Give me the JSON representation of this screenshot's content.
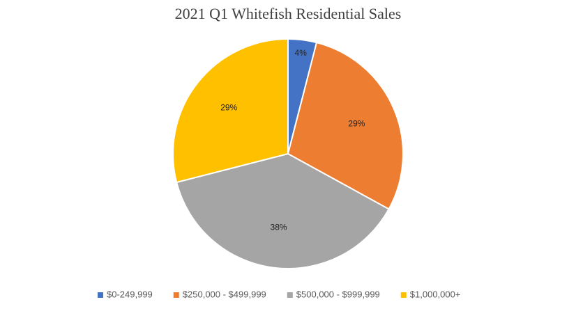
{
  "chart_data": {
    "type": "pie",
    "title": "2021 Q1 Whitefish Residential Sales",
    "categories": [
      "$0-249,999",
      "$250,000 - $499,999",
      "$500,000 - $999,999",
      "$1,000,000+"
    ],
    "values": [
      4,
      29,
      38,
      29
    ],
    "value_labels": [
      "4%",
      "29%",
      "38%",
      "29%"
    ],
    "colors": [
      "#4472c4",
      "#ed7d31",
      "#a5a5a5",
      "#ffc000"
    ],
    "legend": "bottom"
  }
}
